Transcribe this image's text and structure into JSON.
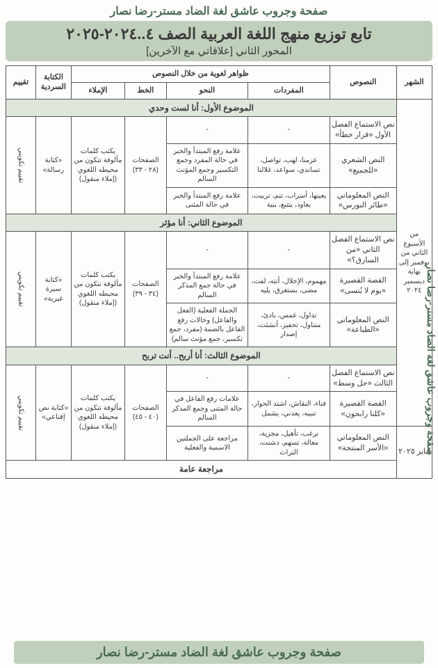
{
  "header": "صفحة وجروب عاشق لغة الضاد مستر-رضا نصار",
  "titleMain": "تابع توزيع منهج اللغة العربية الصف ٤..٢٠٢٤-٢٠٢٥",
  "titleSub": "المحور الثاني [علاقاتي مع الآخرين]",
  "side": "صفحة وجروب عاشق لغة الضاد مستر-رضا نصار",
  "footer": "صفحة وجروب عاشق لغة الضاد مستر-رضا نصار",
  "heads": {
    "month": "الشهر",
    "texts": "النصوص",
    "ling": "ظواهر لغوية من خلال النصوص",
    "vocab": "المفردات",
    "nahw": "النحو",
    "khat": "الخط",
    "imla": "الإملاء",
    "kitaba": "الكتابة السردية",
    "taqyeem": "تقييم"
  },
  "monthCell": "من الأسبوع الثاني من نوفمبر إلى نهاية ديسمبر ٢٠٢٤",
  "monthJan": "يناير ٢٠٢٥",
  "topic1": "الموضوع الأول: أنا لست وحدي",
  "topic2": "الموضوع الثاني: أنا مؤثر",
  "topic3": "الموضوع الثالث: أنا أربح.. أنت تربح",
  "review": "مراجعة عامة",
  "t1": {
    "r1": {
      "text": "نص الاستماع الفصل الأول «قرار خطأ»",
      "vocab": "-",
      "nahw": "-"
    },
    "r2": {
      "text": "النص الشعري «للجميع»",
      "vocab": "عزمنا، لهب، تواصل، تساندي، سواعد، غلالنا",
      "nahw": "علامة رفع المبتدأ والخبر في حالة المفرد وجمع التكسير وجمع المؤنث السالم"
    },
    "r3": {
      "text": "النص المعلوماتي «طائر النورس»",
      "vocab": "يعينها، أسراب، تنم، تربيت، يعاود، يتتبع، بنية",
      "nahw": "علامة رفع المبتدأ والخبر في حالة المثنى"
    },
    "khat": "الصفحات (٢٨ - ٣٣)",
    "imla": "يكتب كلمات مألوفة تتكون من محيطه اللغوي (إملاء منقول)",
    "kitaba": "«كتابة رسالة»",
    "taqyeem": "تقييم تكويني"
  },
  "t2": {
    "r1": {
      "text": "نص الاستماع الفصل الثاني «من السارق؟»",
      "vocab": "-",
      "nahw": "-"
    },
    "r2": {
      "text": "القصة القصيرة «يوم لا يُنسى»",
      "vocab": "مهموم، الإخلال، أتته، لفت، مضى، يستغرق، يليه",
      "nahw": "علامة رفع المبتدأ والخبر في حالة جمع المذكر السالم"
    },
    "r3": {
      "text": "النص المعلوماتي «الطباعة»",
      "vocab": "تداول، غمس، بادئ، متناول، تحفيز، أنشئت، إصدار",
      "nahw": "الجملة الفعلية (الفعل والفاعل) وحالات رفع الفاعل بالضمة (مفرد، جمع تكسير، جمع مؤنث سالم)"
    },
    "khat": "الصفحات (٣٤ - ٣٩)",
    "imla": "يكتب كلمات مألوفة تتكون من محيطه اللغوي (إملاء منقول)",
    "kitaba": "«كتابة سيرة غيرية»",
    "taqyeem": "تقييم تكويني"
  },
  "t3": {
    "r1": {
      "text": "نص الاستماع الفصل الثالث «حل وسط»",
      "vocab": "-",
      "nahw": "-"
    },
    "r2": {
      "text": "القصة القصيرة «كلنا رابحون»",
      "vocab": "فناء، النقاش، اشتد الحوار، تنبيه، يعدني، يشمل",
      "nahw": "علامات رفع الفاعل في حالة المثنى وجمع المذكر السالم"
    },
    "r3": {
      "text": "النص المعلوماتي «الأسر المنتجة»",
      "vocab": "نرغب، تأهيل، مجزية، معالة، تسهم، دشنت، التراث",
      "nahw": "مراجعة على الجملتين الاسمية والفعلية"
    },
    "khat": "الصفحات (٤٠ - ٤٥)",
    "imla": "يكتب كلمات مألوفة تتكون من محيطه اللغوي (إملاء منقول)",
    "kitaba": "«كتابة نص إقناعي»",
    "taqyeem": "تقييم تكويني"
  }
}
